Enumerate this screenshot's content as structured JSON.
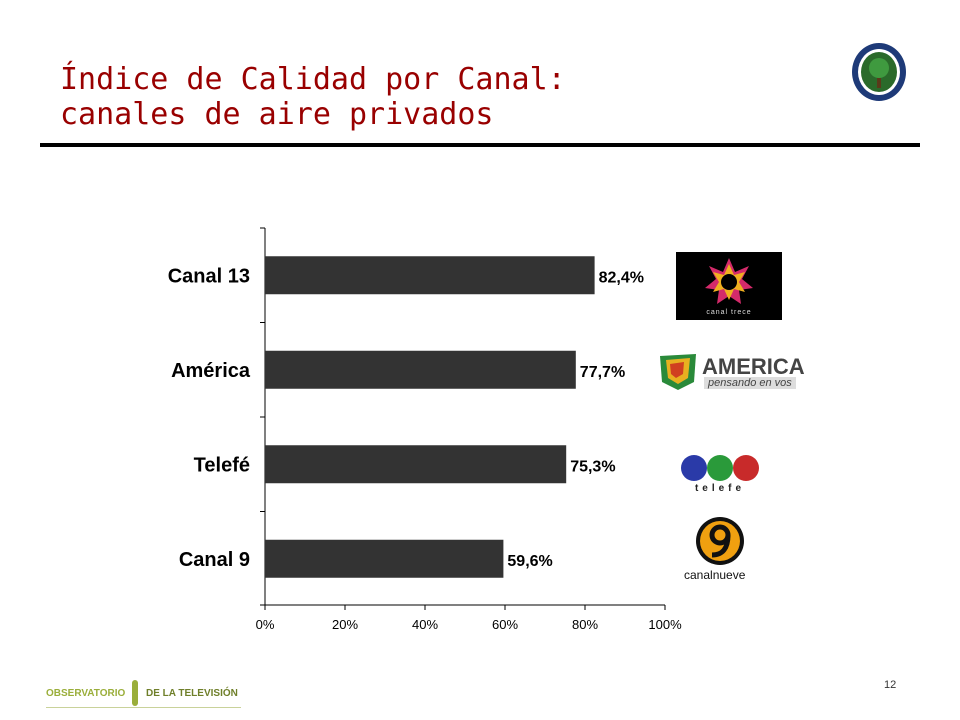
{
  "slide": {
    "title_lines": [
      "Índice de Calidad por Canal:",
      "canales de aire privados"
    ],
    "page_number": "12"
  },
  "footer": {
    "left": "OBSERVATORIO",
    "right": "DE LA TELEVISIÓN"
  },
  "logos": {
    "canal13": "canal trece",
    "america_word": "AMERICA",
    "america_tag": "pensando en vos",
    "telefe": "telefe",
    "canal9": "canalnueve"
  },
  "chart_data": {
    "type": "bar",
    "orientation": "horizontal",
    "categories": [
      "Canal 13",
      "América",
      "Telefé",
      "Canal 9"
    ],
    "values": [
      82.4,
      77.7,
      75.3,
      59.6
    ],
    "value_labels": [
      "82,4%",
      "77,7%",
      "75,3%",
      "59,6%"
    ],
    "x_ticks": [
      "0%",
      "20%",
      "40%",
      "60%",
      "80%",
      "100%"
    ],
    "xlim": [
      0,
      100
    ],
    "bar_color": "#333333",
    "grid": false,
    "legend": "none"
  }
}
